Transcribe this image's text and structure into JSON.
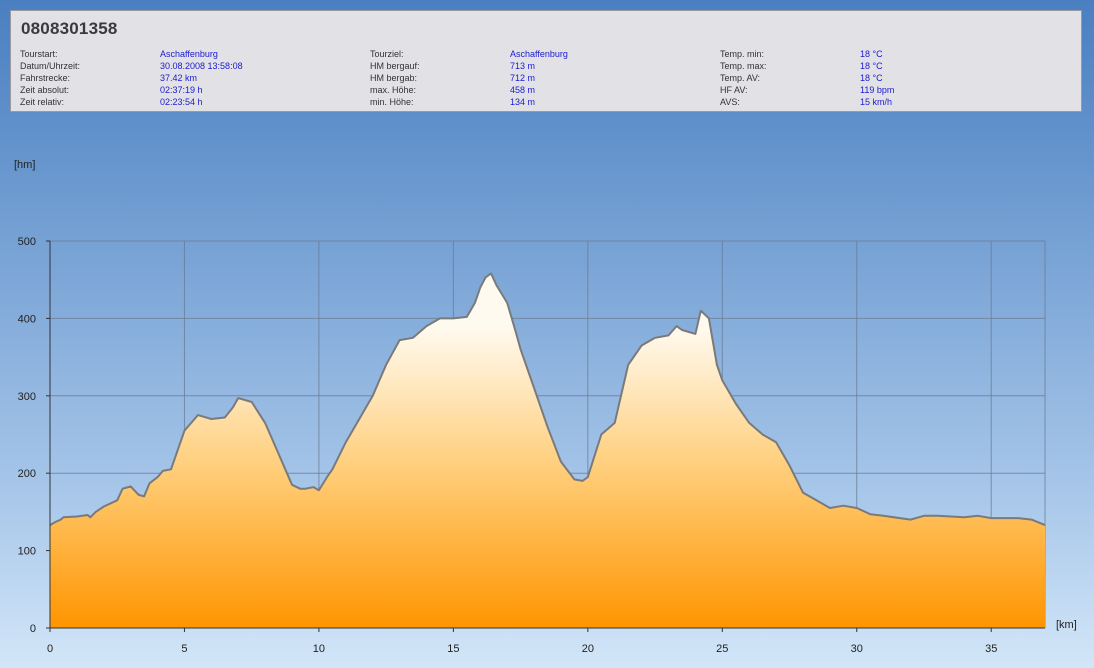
{
  "header": {
    "title": "0808301358",
    "columns": [
      [
        {
          "label": "Tourstart:",
          "value": "Aschaffenburg"
        },
        {
          "label": "Datum/Uhrzeit:",
          "value": "30.08.2008 13:58:08"
        },
        {
          "label": "Fahrstrecke:",
          "value": "37.42 km"
        },
        {
          "label": "Zeit absolut:",
          "value": "02:37:19 h"
        },
        {
          "label": "Zeit relativ:",
          "value": "02:23:54 h"
        }
      ],
      [
        {
          "label": "Tourziel:",
          "value": "Aschaffenburg"
        },
        {
          "label": "HM bergauf:",
          "value": "713 m"
        },
        {
          "label": "HM bergab:",
          "value": "712 m"
        },
        {
          "label": "max. Höhe:",
          "value": "458 m"
        },
        {
          "label": "min. Höhe:",
          "value": "134 m"
        }
      ],
      [
        {
          "label": "Temp. min:",
          "value": "18 °C"
        },
        {
          "label": "Temp. max:",
          "value": "18 °C"
        },
        {
          "label": "Temp. AV:",
          "value": "18 °C"
        },
        {
          "label": "HF AV:",
          "value": "119 bpm"
        },
        {
          "label": "AVS:",
          "value": "15 km/h"
        }
      ]
    ]
  },
  "colors": {
    "fill_top": "#fffaf0",
    "fill_bottom": "#ff9500",
    "outline": "#7a7a7a",
    "grid": "#6a7a90",
    "value_text": "#1b1bd0"
  },
  "chart_data": {
    "type": "area",
    "xlabel": "[km]",
    "ylabel": "[hm]",
    "xlim": [
      0,
      37
    ],
    "ylim": [
      0,
      500
    ],
    "xticks": [
      0,
      5,
      10,
      15,
      20,
      25,
      30,
      35
    ],
    "yticks": [
      0,
      100,
      200,
      300,
      400,
      500
    ],
    "grid": true,
    "series": [
      {
        "x": [
          0,
          0.2,
          0.4,
          0.5,
          1.0,
          1.4,
          1.5,
          1.7,
          2.0,
          2.5,
          2.7,
          3.0,
          3.3,
          3.5,
          3.7,
          4.0,
          4.2,
          4.5,
          5.0,
          5.5,
          6.0,
          6.5,
          6.8,
          7.0,
          7.5,
          8.0,
          8.5,
          9.0,
          9.3,
          9.5,
          9.8,
          10.0,
          10.3,
          10.5,
          11.0,
          11.5,
          12.0,
          12.5,
          13.0,
          13.5,
          14.0,
          14.5,
          15.0,
          15.5,
          15.8,
          16.0,
          16.2,
          16.4,
          16.6,
          17.0,
          17.3,
          17.5,
          18.0,
          18.5,
          19.0,
          19.5,
          19.8,
          20.0,
          20.5,
          21.0,
          21.5,
          22.0,
          22.5,
          23.0,
          23.3,
          23.5,
          24.0,
          24.2,
          24.5,
          24.8,
          25.0,
          25.5,
          26.0,
          26.5,
          27.0,
          27.5,
          28.0,
          28.5,
          29.0,
          29.5,
          30.0,
          30.5,
          31.0,
          32.0,
          32.5,
          33.0,
          34.0,
          34.5,
          35.0,
          36.0,
          36.5,
          37.0
        ],
        "y": [
          133,
          137,
          140,
          143,
          144,
          146,
          143,
          150,
          157,
          165,
          180,
          183,
          172,
          170,
          187,
          195,
          203,
          205,
          255,
          275,
          270,
          272,
          285,
          297,
          292,
          265,
          225,
          185,
          180,
          180,
          182,
          178,
          195,
          205,
          240,
          270,
          300,
          340,
          372,
          375,
          390,
          400,
          400,
          402,
          420,
          440,
          453,
          458,
          443,
          420,
          385,
          360,
          310,
          260,
          215,
          192,
          190,
          195,
          250,
          265,
          340,
          365,
          375,
          378,
          390,
          385,
          380,
          410,
          400,
          340,
          320,
          290,
          265,
          250,
          240,
          210,
          175,
          165,
          155,
          158,
          155,
          147,
          145,
          140,
          145,
          145,
          143,
          145,
          142,
          142,
          140,
          133
        ]
      }
    ]
  }
}
